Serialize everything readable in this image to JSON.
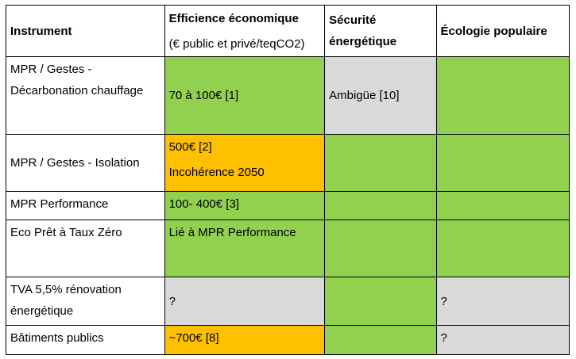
{
  "colors": {
    "green": "#92d050",
    "orange": "#ffc000",
    "gray": "#d9d9d9",
    "white": "#ffffff",
    "border": "#000000",
    "text": "#000000"
  },
  "table": {
    "header": {
      "instrument": "Instrument",
      "efficience_title": "Efficience économique",
      "efficience_subtitle": "(€ public et privé/teqCO2)",
      "securite": "Sécurité énergétique",
      "ecologie": "Écologie populaire"
    },
    "rows": [
      {
        "instrument": "MPR / Gestes - Décarbonation chauffage",
        "efficience": {
          "text": "70 à 100€ [1]",
          "status": "green"
        },
        "securite": {
          "text": "Ambigüe [10]",
          "status": "gray"
        },
        "ecologie": {
          "text": "",
          "status": "green"
        }
      },
      {
        "instrument": "MPR / Gestes - Isolation",
        "efficience": {
          "text": "500€ [2]",
          "text2": "Incohérence 2050",
          "status": "orange"
        },
        "securite": {
          "text": "",
          "status": "green"
        },
        "ecologie": {
          "text": "",
          "status": "green"
        }
      },
      {
        "instrument": "MPR Performance",
        "efficience": {
          "text": "100- 400€ [3]",
          "status": "green"
        },
        "securite": {
          "text": "",
          "status": "green"
        },
        "ecologie": {
          "text": "",
          "status": "green"
        }
      },
      {
        "instrument": "Eco Prêt à Taux Zéro",
        "efficience": {
          "text": "Lié à MPR Performance",
          "status": "green"
        },
        "securite": {
          "text": "",
          "status": "green"
        },
        "ecologie": {
          "text": "",
          "status": "green"
        }
      },
      {
        "instrument": "TVA 5,5% rénovation énergétique",
        "efficience": {
          "text": "?",
          "status": "gray"
        },
        "securite": {
          "text": "",
          "status": "green"
        },
        "ecologie": {
          "text": "?",
          "status": "gray"
        }
      },
      {
        "instrument": "Bâtiments publics",
        "efficience": {
          "text": "~700€ [8]",
          "status": "orange"
        },
        "securite": {
          "text": "",
          "status": "green"
        },
        "ecologie": {
          "text": "?",
          "status": "gray"
        }
      }
    ]
  }
}
